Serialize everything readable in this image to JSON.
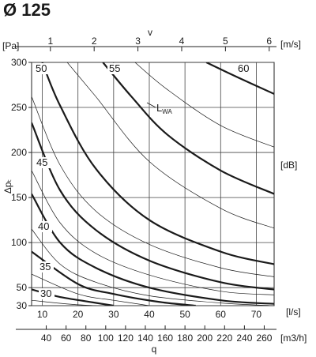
{
  "title": "Ø 125",
  "chart_data": {
    "type": "line",
    "title": "Ø 125",
    "ylabel": "Δpₜ",
    "y_unit": "[Pa]",
    "y_ticks": [
      30,
      50,
      100,
      150,
      200,
      250,
      300
    ],
    "ylim": [
      30,
      300
    ],
    "xlabel_flow_ls_unit": "[l/s]",
    "x_ticks_ls": [
      10,
      20,
      30,
      40,
      50,
      60,
      70
    ],
    "xlim_ls": [
      7,
      75
    ],
    "top_axis_label": "v",
    "top_axis_unit": "[m/s]",
    "top_ticks": [
      1,
      2,
      3,
      4,
      5,
      6
    ],
    "top_axis_ls_per_unit": 12.27,
    "bottom_axis_label": "q",
    "bottom_axis_unit": "[m3/h]",
    "bottom_ticks": [
      40,
      60,
      80,
      100,
      120,
      140,
      160,
      180,
      200,
      220,
      240,
      260
    ],
    "sound_unit": "[dB]",
    "sound_label": "LWA",
    "grid": true,
    "series": [
      {
        "name": "30",
        "style": "thick",
        "x": [
          7,
          14.5,
          22,
          30
        ],
        "y": [
          48,
          40,
          35,
          30
        ]
      },
      {
        "name": "35",
        "style": "thick",
        "x": [
          7,
          20,
          30,
          43,
          53
        ],
        "y": [
          90,
          54,
          43,
          34,
          30
        ]
      },
      {
        "name": "40",
        "style": "thick",
        "x": [
          7,
          15,
          25,
          40,
          60,
          75
        ],
        "y": [
          154,
          100,
          72,
          50,
          36,
          32
        ]
      },
      {
        "name": "45",
        "style": "thick",
        "x": [
          7,
          15,
          25,
          40,
          60,
          75
        ],
        "y": [
          233,
          158,
          114,
          80,
          56,
          48
        ]
      },
      {
        "name": "50",
        "style": "thick",
        "x": [
          10,
          15,
          25,
          40,
          60,
          75
        ],
        "y": [
          300,
          252,
          182,
          125,
          90,
          76
        ]
      },
      {
        "name": "55",
        "style": "thick",
        "x": [
          27,
          35,
          45,
          60,
          75
        ],
        "y": [
          300,
          262,
          220,
          180,
          154
        ]
      },
      {
        "name": "60",
        "style": "thick",
        "x": [
          56,
          65,
          75
        ],
        "y": [
          300,
          283,
          265
        ]
      },
      {
        "name": "",
        "style": "thin",
        "x": [
          7,
          14,
          20,
          25
        ],
        "y": [
          36,
          33,
          31,
          30
        ]
      },
      {
        "name": "",
        "style": "thin",
        "x": [
          7,
          20,
          30,
          40
        ],
        "y": [
          65,
          43,
          36,
          30
        ]
      },
      {
        "name": "",
        "style": "thin",
        "x": [
          7,
          15,
          25,
          40,
          60,
          75
        ],
        "y": [
          115,
          76,
          56,
          41,
          33,
          30
        ]
      },
      {
        "name": "",
        "style": "thin",
        "x": [
          7,
          15,
          25,
          40,
          60,
          75
        ],
        "y": [
          180,
          122,
          88,
          64,
          46,
          42
        ]
      },
      {
        "name": "",
        "style": "thin",
        "x": [
          7,
          15,
          25,
          40,
          60,
          75
        ],
        "y": [
          262,
          186,
          135,
          98,
          72,
          62
        ]
      },
      {
        "name": "",
        "style": "thin",
        "x": [
          17,
          25,
          40,
          60,
          75
        ],
        "y": [
          300,
          262,
          190,
          138,
          116
        ]
      },
      {
        "name": "",
        "style": "thin",
        "x": [
          36,
          45,
          60,
          75
        ],
        "y": [
          300,
          270,
          230,
          206
        ]
      }
    ]
  }
}
